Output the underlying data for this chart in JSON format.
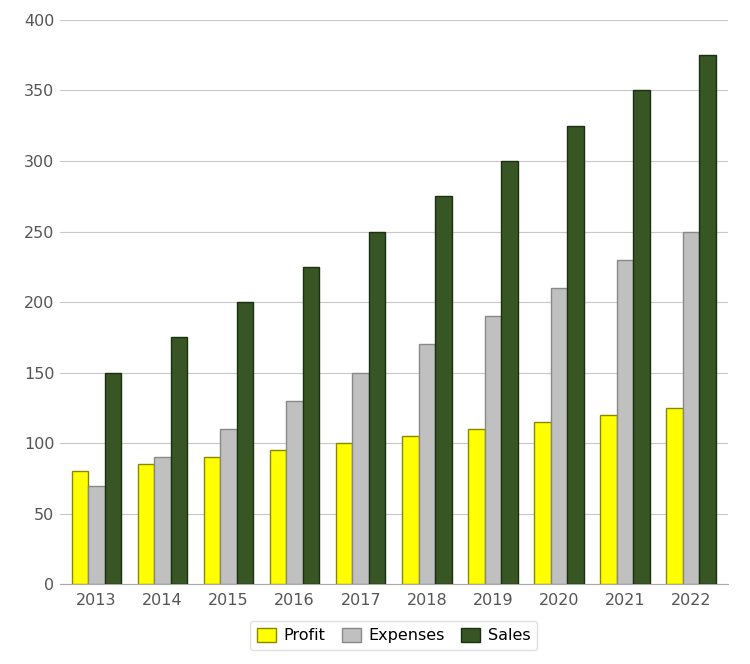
{
  "years": [
    2013,
    2014,
    2015,
    2016,
    2017,
    2018,
    2019,
    2020,
    2021,
    2022
  ],
  "profit": [
    80,
    85,
    90,
    95,
    100,
    105,
    110,
    115,
    120,
    125
  ],
  "expenses": [
    70,
    90,
    110,
    130,
    150,
    170,
    190,
    210,
    230,
    250
  ],
  "sales": [
    150,
    175,
    200,
    225,
    250,
    275,
    300,
    325,
    350,
    375
  ],
  "profit_color": "#ffff00",
  "expenses_color": "#c0c0c0",
  "sales_color": "#375623",
  "profit_edge": "#888800",
  "expenses_edge": "#888888",
  "sales_edge": "#1a3010",
  "profit_label": "Profit",
  "expenses_label": "Expenses",
  "sales_label": "Sales",
  "ylim": [
    0,
    400
  ],
  "yticks": [
    0,
    50,
    100,
    150,
    200,
    250,
    300,
    350,
    400
  ],
  "background_color": "#ffffff",
  "grid_color": "#c8c8c8",
  "bar_width": 0.25,
  "figsize": [
    7.5,
    6.64
  ],
  "dpi": 100
}
